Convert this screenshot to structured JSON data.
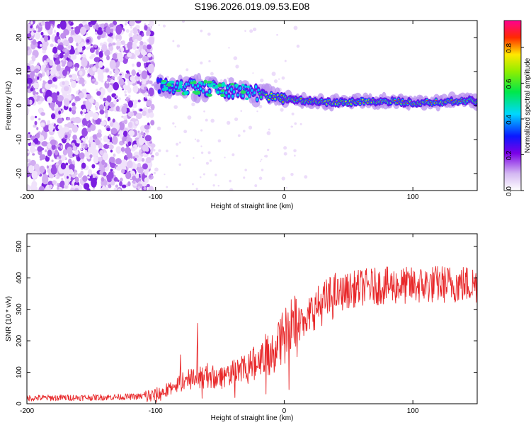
{
  "chart_data": [
    {
      "type": "heatmap",
      "title": "S196.2026.019.09.53.E08",
      "xlabel": "Height of straight line (km)",
      "ylabel": "Frequency (Hz)",
      "xlim": [
        -200,
        150
      ],
      "ylim": [
        -25,
        25
      ],
      "x_ticks": [
        "-200",
        "-100",
        "0",
        "100"
      ],
      "y_ticks": [
        "-20",
        "-10",
        "0",
        "10",
        "20"
      ],
      "colorbar": {
        "label": "Normalized spectral amplitude",
        "range": [
          0,
          0.95
        ],
        "ticks": [
          "0.0",
          "0.2",
          "0.4",
          "0.6",
          "0.8"
        ]
      },
      "ridge": {
        "x": [
          -100,
          -80,
          -60,
          -40,
          -20,
          0,
          20,
          40,
          60,
          80,
          100,
          120,
          150
        ],
        "y": [
          6,
          5.5,
          5,
          4.5,
          3.5,
          2.2,
          1.2,
          0.8,
          1.2,
          1.3,
          0.9,
          1.0,
          1.4
        ]
      }
    },
    {
      "type": "line",
      "xlabel": "Height of straight line (km)",
      "ylabel": "SNR (10 * v/v)",
      "xlim": [
        -200,
        150
      ],
      "ylim": [
        0,
        540
      ],
      "x_ticks": [
        "-200",
        "-100",
        "0",
        "100"
      ],
      "y_ticks": [
        "0",
        "100",
        "200",
        "300",
        "400",
        "500"
      ],
      "series": [
        {
          "name": "SNR",
          "color": "#e8282a",
          "x": [
            -200,
            -150,
            -120,
            -100,
            -90,
            -80,
            -70,
            -60,
            -50,
            -40,
            -30,
            -20,
            -10,
            0,
            10,
            20,
            30,
            40,
            50,
            60,
            80,
            100,
            120,
            150
          ],
          "values": [
            18,
            20,
            22,
            25,
            45,
            70,
            80,
            90,
            85,
            95,
            110,
            135,
            170,
            210,
            250,
            290,
            320,
            345,
            360,
            370,
            375,
            375,
            380,
            380
          ]
        }
      ]
    }
  ]
}
